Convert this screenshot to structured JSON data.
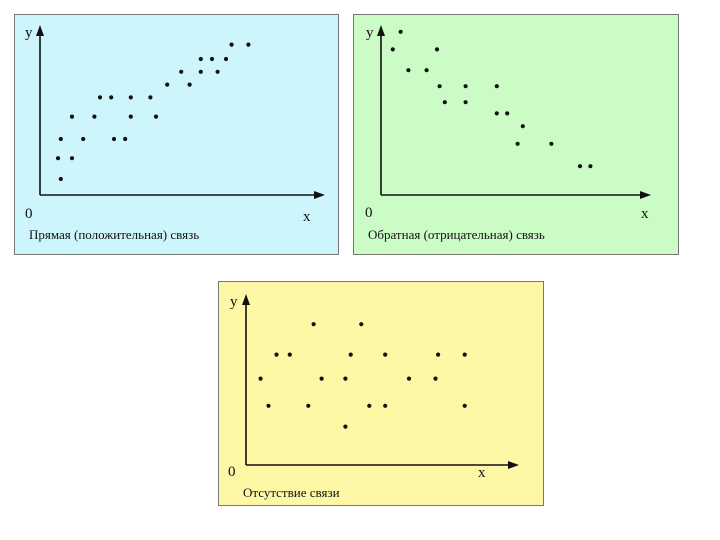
{
  "colors": {
    "positive_bg": "#ccf5fc",
    "negative_bg": "#ccfcc6",
    "none_bg": "#fcf8a6",
    "point": "#111111",
    "axis": "#111111"
  },
  "chart_data": [
    {
      "type": "scatter",
      "id": "positive",
      "caption": "Прямая (положительная) связь",
      "xlabel": "x",
      "ylabel": "y",
      "origin_label": "0",
      "xlim": [
        0,
        100
      ],
      "ylim": [
        0,
        100
      ],
      "points": [
        [
          6,
          10
        ],
        [
          5,
          23
        ],
        [
          10,
          23
        ],
        [
          6,
          35
        ],
        [
          14,
          35
        ],
        [
          10,
          49
        ],
        [
          18,
          49
        ],
        [
          20,
          61
        ],
        [
          24,
          61
        ],
        [
          25,
          35
        ],
        [
          29,
          35
        ],
        [
          31,
          49
        ],
        [
          40,
          49
        ],
        [
          31,
          61
        ],
        [
          38,
          61
        ],
        [
          44,
          69
        ],
        [
          52,
          69
        ],
        [
          49,
          77
        ],
        [
          56,
          77
        ],
        [
          56,
          85
        ],
        [
          60,
          85
        ],
        [
          62,
          77
        ],
        [
          65,
          85
        ],
        [
          67,
          94
        ],
        [
          73,
          94
        ]
      ]
    },
    {
      "type": "scatter",
      "id": "negative",
      "caption": "Обратная (отрицательная) связь",
      "xlabel": "x",
      "ylabel": "y",
      "origin_label": "0",
      "xlim": [
        0,
        100
      ],
      "ylim": [
        0,
        100
      ],
      "points": [
        [
          6,
          102
        ],
        [
          3,
          91
        ],
        [
          20,
          91
        ],
        [
          9,
          78
        ],
        [
          16,
          78
        ],
        [
          21,
          68
        ],
        [
          31,
          68
        ],
        [
          43,
          68
        ],
        [
          23,
          58
        ],
        [
          31,
          58
        ],
        [
          43,
          51
        ],
        [
          47,
          51
        ],
        [
          53,
          43
        ],
        [
          51,
          32
        ],
        [
          64,
          32
        ],
        [
          75,
          18
        ],
        [
          79,
          18
        ]
      ]
    },
    {
      "type": "scatter",
      "id": "none",
      "caption": "Отсутствие связи",
      "xlabel": "x",
      "ylabel": "y",
      "origin_label": "0",
      "xlim": [
        0,
        100
      ],
      "ylim": [
        0,
        100
      ],
      "points": [
        [
          4,
          54
        ],
        [
          7,
          37
        ],
        [
          10,
          69
        ],
        [
          15,
          69
        ],
        [
          22,
          37
        ],
        [
          24,
          88
        ],
        [
          27,
          54
        ],
        [
          36,
          54
        ],
        [
          36,
          24
        ],
        [
          38,
          69
        ],
        [
          42,
          88
        ],
        [
          45,
          37
        ],
        [
          51,
          37
        ],
        [
          51,
          69
        ],
        [
          60,
          54
        ],
        [
          70,
          54
        ],
        [
          71,
          69
        ],
        [
          81,
          69
        ],
        [
          81,
          37
        ]
      ]
    }
  ]
}
